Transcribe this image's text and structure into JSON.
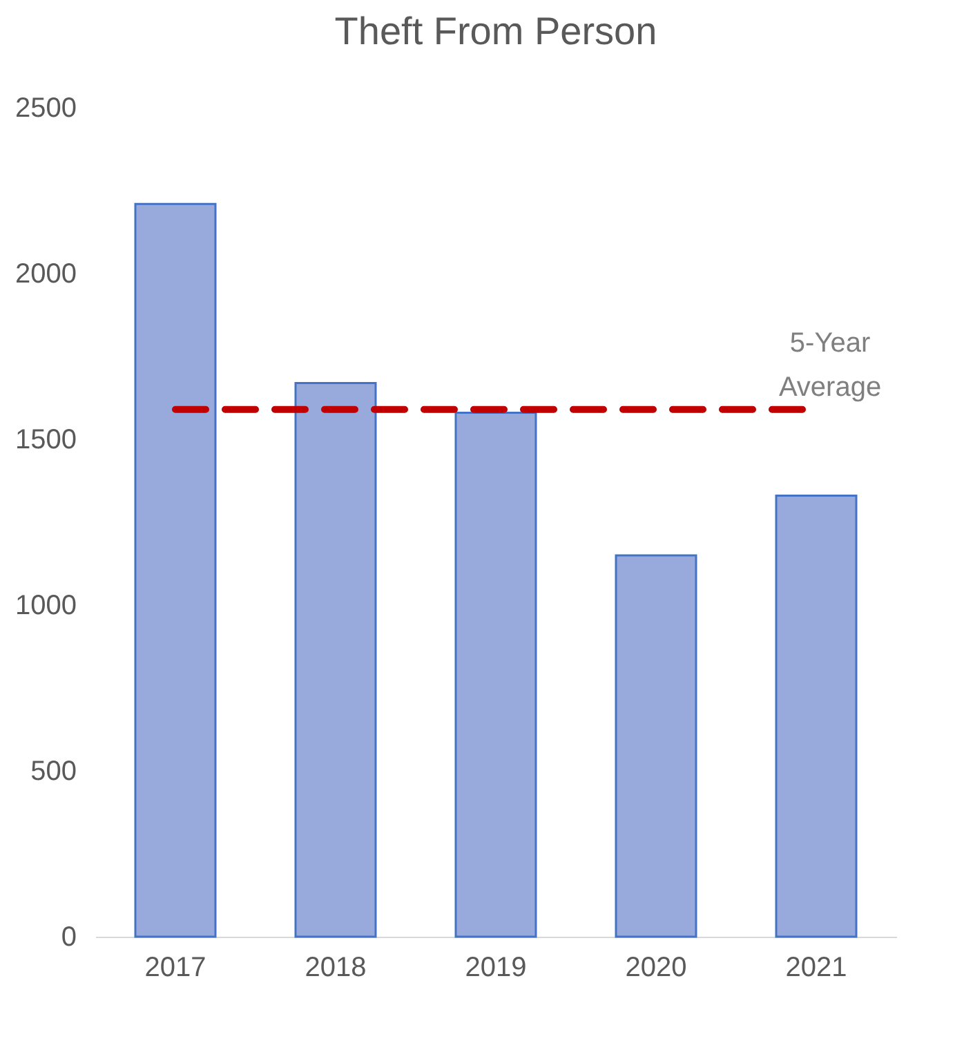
{
  "chart_data": {
    "type": "bar",
    "title": "Theft From Person",
    "categories": [
      "2017",
      "2018",
      "2019",
      "2020",
      "2021"
    ],
    "values": [
      2210,
      1670,
      1580,
      1150,
      1330
    ],
    "color": "#98aadc",
    "ylim": [
      0,
      2500
    ],
    "yticks": [
      0,
      500,
      1000,
      1500,
      2000,
      2500
    ],
    "grid": false,
    "ref_lines": [
      {
        "axis": "y",
        "value": 1590,
        "label": "5-Year Average",
        "color": "#c00000",
        "line_style": "dashed"
      }
    ]
  }
}
